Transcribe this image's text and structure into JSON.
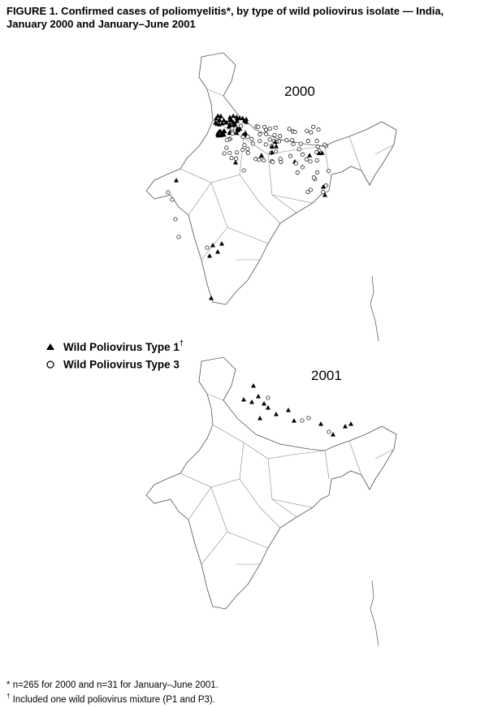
{
  "header": {
    "title_lines": [
      "FIGURE 1. Confirmed cases of poliomyelitis*, by type of wild poliovirus isolate — India,",
      "January 2000 and January–June 2001"
    ]
  },
  "maps": [
    {
      "label": "2000"
    },
    {
      "label": "2001"
    }
  ],
  "legend": [
    {
      "label": "Wild Poliovirus Type 1",
      "note": "†"
    },
    {
      "label": "Wild Poliovirus Type 3"
    }
  ],
  "footnotes": [
    {
      "symbol": "*",
      "text": "n=265 for 2000 and n=31 for January–June 2001."
    },
    {
      "symbol": "†",
      "text": "Included one wild poliovirus mixture (P1 and P3)."
    }
  ]
}
